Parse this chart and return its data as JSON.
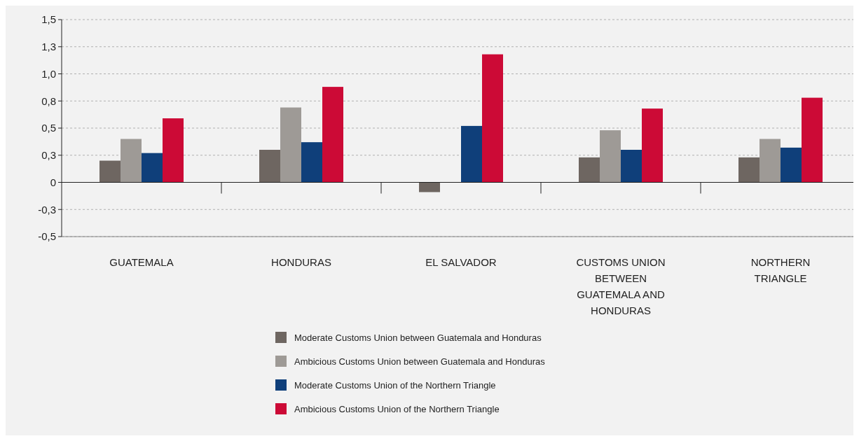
{
  "chart_data": {
    "type": "bar",
    "categories": [
      "GUATEMALA",
      "HONDURAS",
      "EL SALVADOR",
      "CUSTOMS UNION BETWEEN GUATEMALA AND HONDURAS",
      "NORTHERN TRIANGLE"
    ],
    "series": [
      {
        "name": "Moderate Customs Union between Guatemala and Honduras",
        "color": "#6e6661",
        "values": [
          0.2,
          0.3,
          -0.09,
          0.23,
          0.23
        ]
      },
      {
        "name": "Ambicious Customs Union between Guatemala and Honduras",
        "color": "#9e9a96",
        "values": [
          0.4,
          0.69,
          null,
          0.48,
          0.4
        ]
      },
      {
        "name": "Moderate Customs Union of the Northern Triangle",
        "color": "#0f3f7a",
        "values": [
          0.27,
          0.37,
          0.52,
          0.3,
          0.32
        ]
      },
      {
        "name": "Ambicious Customs Union of the Northern Triangle",
        "color": "#cc0a36",
        "values": [
          0.59,
          0.88,
          1.18,
          0.68,
          0.78
        ]
      }
    ],
    "ylim": [
      -0.5,
      1.5
    ],
    "yticks": [
      {
        "value": -0.5,
        "label": "-0,5"
      },
      {
        "value": -0.25,
        "label": "-0,3"
      },
      0,
      {
        "value": 0.25,
        "label": "0,3"
      },
      {
        "value": 0.5,
        "label": "0,5"
      },
      {
        "value": 0.75,
        "label": "0,8"
      },
      {
        "value": 1,
        "label": "1,0"
      },
      {
        "value": 1.25,
        "label": "1,3"
      },
      {
        "value": 1.5,
        "label": "1,5"
      }
    ],
    "grid": "y",
    "legend": "bottom"
  }
}
